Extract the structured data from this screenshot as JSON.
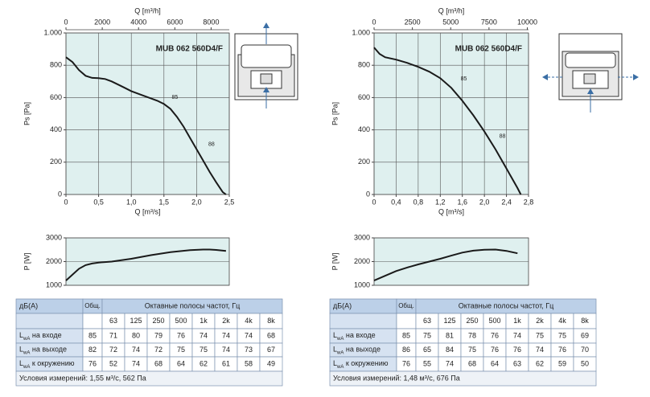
{
  "chart_data": [
    {
      "type": "line",
      "title": "MUB 062 560D4/F",
      "xlabel": "Q [m³/s]",
      "ylabel": "Ps [Pa]",
      "x2label": "Q [m³/h]",
      "color": "#1a1a1a",
      "plot_color": "#dff0ef",
      "grid": true,
      "xlim": [
        0,
        2.5
      ],
      "xticks": [
        0,
        {
          "value": 0.5,
          "label": "0,5"
        },
        {
          "value": 1.0,
          "label": "1,0"
        },
        {
          "value": 1.5,
          "label": "1,5"
        },
        {
          "value": 2.0,
          "label": "2,0"
        },
        {
          "value": 2.5,
          "label": "2,5"
        }
      ],
      "ylim": [
        0,
        1000
      ],
      "yticks": [
        0,
        200,
        400,
        600,
        800,
        {
          "value": 1000,
          "label": "1.000"
        }
      ],
      "x2lim": [
        0,
        9000
      ],
      "x2ticks": [
        0,
        2000,
        4000,
        6000,
        8000
      ],
      "x": [
        0,
        0.1,
        0.2,
        0.3,
        0.4,
        0.5,
        0.6,
        0.7,
        0.8,
        0.9,
        1.0,
        1.1,
        1.2,
        1.3,
        1.4,
        1.5,
        1.6,
        1.7,
        1.8,
        1.9,
        2.0,
        2.1,
        2.2,
        2.3,
        2.4,
        2.45
      ],
      "values": [
        850,
        820,
        770,
        735,
        722,
        720,
        715,
        700,
        680,
        660,
        640,
        625,
        610,
        595,
        580,
        560,
        530,
        480,
        420,
        350,
        280,
        210,
        140,
        75,
        15,
        0
      ],
      "annotations": [
        {
          "text": "85",
          "x": 1.62,
          "y": 600
        },
        {
          "text": "88",
          "x": 2.18,
          "y": 310
        }
      ]
    },
    {
      "type": "line",
      "title": "MUB 062 560D4/F",
      "xlabel": "Q [m³/s]",
      "ylabel": "Ps [Pa]",
      "x2label": "Q [m³/h]",
      "color": "#1a1a1a",
      "plot_color": "#dff0ef",
      "grid": true,
      "xlim": [
        0,
        2.8
      ],
      "xticks": [
        0,
        {
          "value": 0.4,
          "label": "0,4"
        },
        {
          "value": 0.8,
          "label": "0,8"
        },
        {
          "value": 1.2,
          "label": "1,2"
        },
        {
          "value": 1.6,
          "label": "1,6"
        },
        {
          "value": 2.0,
          "label": "2,0"
        },
        {
          "value": 2.4,
          "label": "2,4"
        },
        {
          "value": 2.8,
          "label": "2,8"
        }
      ],
      "ylim": [
        0,
        1000
      ],
      "yticks": [
        0,
        200,
        400,
        600,
        800,
        {
          "value": 1000,
          "label": "1.000"
        }
      ],
      "x2lim": [
        0,
        10080
      ],
      "x2ticks": [
        0,
        2500,
        5000,
        7500,
        10000
      ],
      "x": [
        0,
        0.1,
        0.2,
        0.4,
        0.6,
        0.8,
        1.0,
        1.2,
        1.4,
        1.6,
        1.8,
        2.0,
        2.2,
        2.4,
        2.6,
        2.66
      ],
      "values": [
        910,
        870,
        850,
        835,
        815,
        790,
        760,
        720,
        660,
        580,
        490,
        390,
        280,
        160,
        40,
        0
      ],
      "annotations": [
        {
          "text": "85",
          "x": 1.57,
          "y": 715
        },
        {
          "text": "88",
          "x": 2.27,
          "y": 360
        }
      ]
    },
    {
      "type": "line",
      "ylabel": "P [W]",
      "color": "#1a1a1a",
      "plot_color": "#dff0ef",
      "grid": true,
      "xlim": [
        0,
        2.5
      ],
      "ylim": [
        1000,
        3000
      ],
      "yticks": [
        1000,
        2000,
        3000
      ],
      "x": [
        0,
        0.1,
        0.2,
        0.3,
        0.4,
        0.5,
        0.7,
        1.0,
        1.3,
        1.6,
        1.9,
        2.1,
        2.2,
        2.3,
        2.45
      ],
      "values": [
        1200,
        1450,
        1700,
        1850,
        1920,
        1960,
        2000,
        2120,
        2270,
        2400,
        2480,
        2510,
        2510,
        2490,
        2450
      ]
    },
    {
      "type": "line",
      "ylabel": "P [W]",
      "color": "#1a1a1a",
      "plot_color": "#dff0ef",
      "grid": true,
      "xlim": [
        0,
        2.8
      ],
      "ylim": [
        1000,
        3000
      ],
      "yticks": [
        1000,
        2000,
        3000
      ],
      "x": [
        0,
        0.2,
        0.4,
        0.6,
        0.8,
        1.0,
        1.2,
        1.4,
        1.6,
        1.8,
        2.0,
        2.2,
        2.4,
        2.6
      ],
      "values": [
        1200,
        1400,
        1600,
        1750,
        1880,
        2000,
        2120,
        2250,
        2380,
        2460,
        2500,
        2510,
        2450,
        2350
      ]
    }
  ],
  "tables": [
    {
      "head": "дБ(A)",
      "total": "Общ.",
      "bands_title": "Октавные полосы частот, Гц",
      "bands": [
        "63",
        "125",
        "250",
        "500",
        "1k",
        "2k",
        "4k",
        "8k"
      ],
      "rows": [
        {
          "label": {
            "symbol": "L",
            "sub": "wA",
            "text": " на входе"
          },
          "total": 85,
          "values": [
            71,
            80,
            79,
            76,
            74,
            74,
            74,
            68
          ]
        },
        {
          "label": {
            "symbol": "L",
            "sub": "wA",
            "text": " на выходе"
          },
          "total": 82,
          "values": [
            72,
            74,
            72,
            75,
            75,
            74,
            73,
            67
          ]
        },
        {
          "label": {
            "symbol": "L",
            "sub": "wA",
            "text": " к окружению"
          },
          "total": 76,
          "values": [
            52,
            74,
            68,
            64,
            62,
            61,
            58,
            49
          ]
        }
      ],
      "conditions": "Условия измерений: 1,55 м³/с, 562 Па"
    },
    {
      "head": "дБ(A)",
      "total": "Общ.",
      "bands_title": "Октавные полосы частот, Гц",
      "bands": [
        "63",
        "125",
        "250",
        "500",
        "1k",
        "2k",
        "4k",
        "8k"
      ],
      "rows": [
        {
          "label": {
            "symbol": "L",
            "sub": "wA",
            "text": " на входе"
          },
          "total": 85,
          "values": [
            75,
            81,
            78,
            76,
            74,
            75,
            75,
            69
          ]
        },
        {
          "label": {
            "symbol": "L",
            "sub": "wA",
            "text": " на выходе"
          },
          "total": 86,
          "values": [
            65,
            84,
            75,
            76,
            76,
            74,
            76,
            70
          ]
        },
        {
          "label": {
            "symbol": "L",
            "sub": "wA",
            "text": " к окружению"
          },
          "total": 76,
          "values": [
            55,
            74,
            68,
            64,
            63,
            62,
            59,
            50
          ]
        }
      ],
      "conditions": "Условия измерений: 1,48 м³/с, 676 Па"
    }
  ]
}
